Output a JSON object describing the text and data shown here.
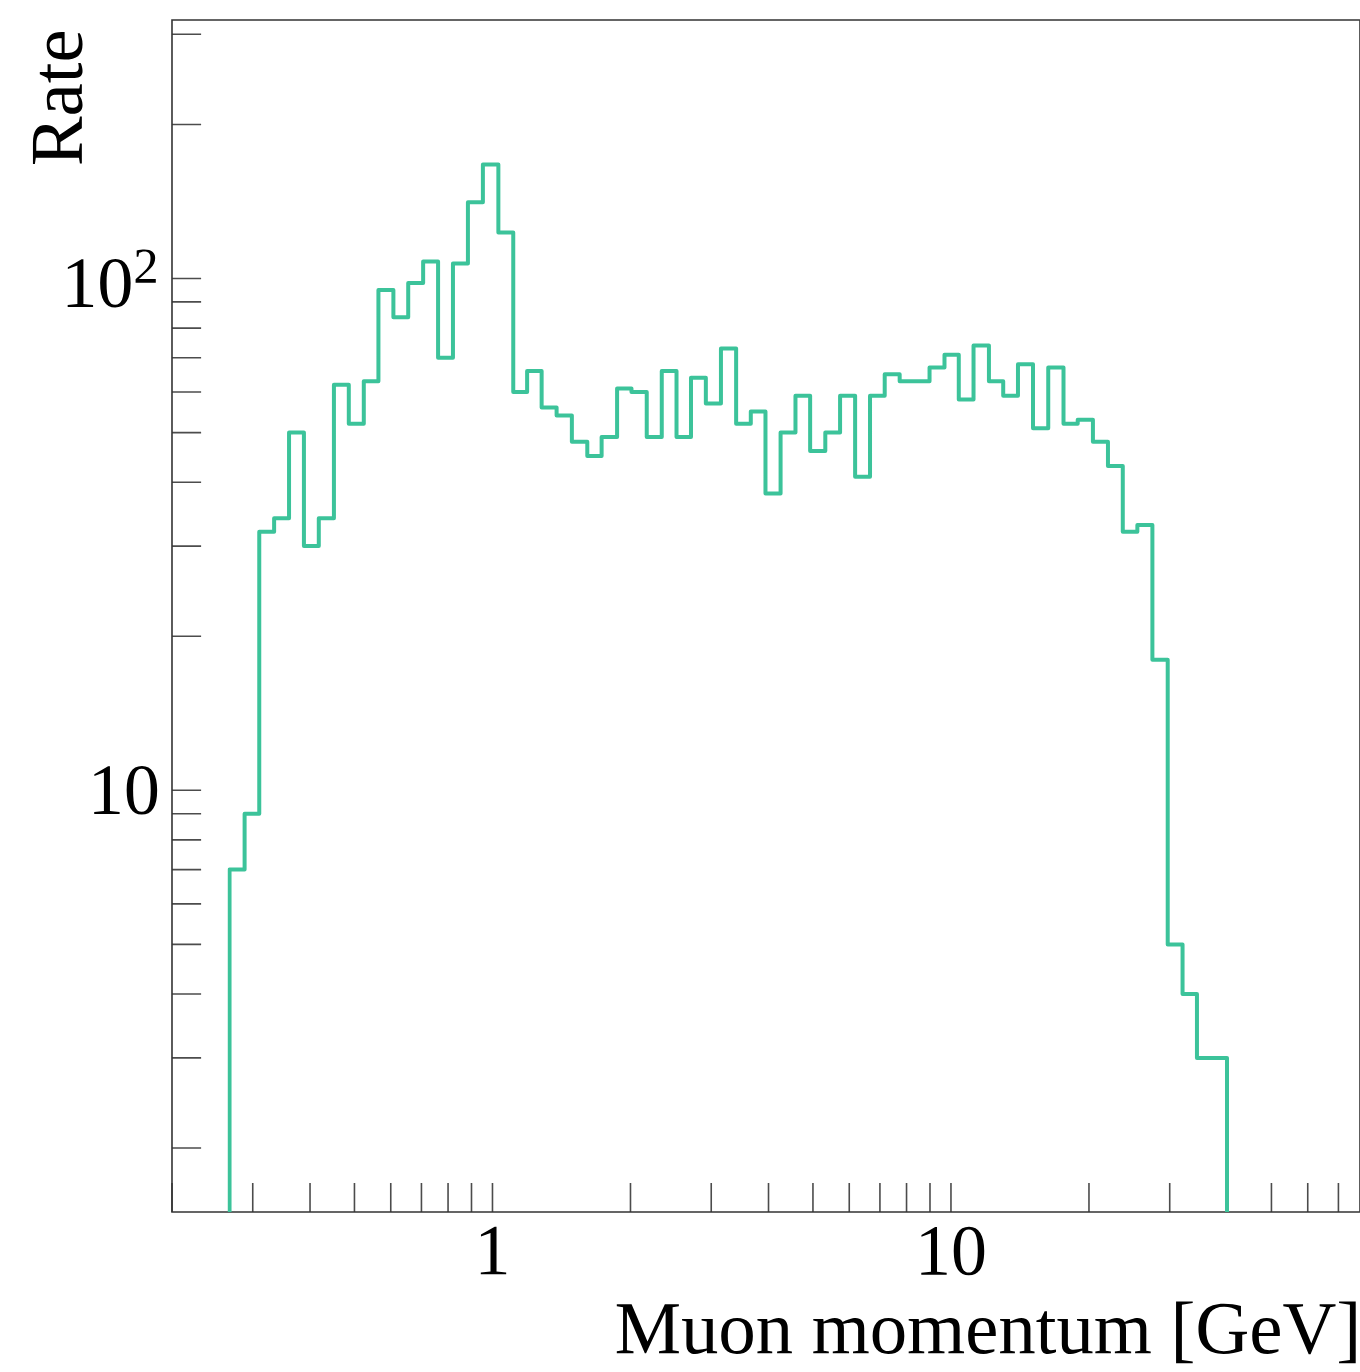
{
  "chart_data": {
    "type": "histogram",
    "xlabel": "Muon momentum [GeV]",
    "ylabel": "Rate",
    "log": "xy",
    "color": "#3cc39a",
    "bins": [
      0.267,
      0.288,
      0.31,
      0.334,
      0.36,
      0.388,
      0.418,
      0.451,
      0.486,
      0.524,
      0.564,
      0.608,
      0.655,
      0.706,
      0.761,
      0.82,
      0.884,
      0.953,
      1.03,
      1.11,
      1.19,
      1.28,
      1.38,
      1.49,
      1.61,
      1.73,
      1.87,
      2.01,
      2.17,
      2.34,
      2.52,
      2.71,
      2.92,
      3.15,
      3.4,
      3.66,
      3.94,
      4.25,
      4.58,
      4.93,
      5.32,
      5.73,
      6.18,
      6.66,
      7.17,
      7.73,
      8.33,
      8.98,
      9.68,
      10.4,
      11.2,
      12.1,
      13.0,
      14.0,
      15.1,
      16.3,
      17.6,
      18.9,
      20.4,
      22.0,
      23.7,
      25.5,
      27.5,
      29.7,
      32.0,
      34.4,
      37.1,
      40.0
    ],
    "values": [
      7.0,
      9.0,
      32,
      34,
      50,
      30,
      34,
      62,
      52,
      63,
      95,
      84,
      98,
      108,
      70,
      107,
      141,
      167,
      123,
      60,
      66,
      56,
      54,
      48,
      45,
      49,
      61,
      60,
      49,
      66,
      49,
      64,
      57,
      73,
      52,
      55,
      38,
      50,
      59,
      46,
      50,
      59,
      41,
      59,
      65,
      63,
      63,
      67,
      71,
      58,
      74,
      63,
      59,
      68,
      51,
      67,
      52,
      53,
      48,
      43,
      32,
      33,
      18,
      5.0,
      4.0,
      3.0,
      3.0
    ],
    "xlim": [
      0.2,
      78
    ],
    "ylim": [
      1.5,
      320
    ],
    "xticks": [
      {
        "value": 0.2,
        "label": null
      },
      {
        "value": 0.3,
        "label": null
      },
      {
        "value": 0.4,
        "label": null
      },
      {
        "value": 0.5,
        "label": null
      },
      {
        "value": 0.6,
        "label": null
      },
      {
        "value": 0.7,
        "label": null
      },
      {
        "value": 0.8,
        "label": null
      },
      {
        "value": 0.9,
        "label": null
      },
      1,
      {
        "value": 2,
        "label": null
      },
      {
        "value": 3,
        "label": null
      },
      {
        "value": 4,
        "label": null
      },
      {
        "value": 5,
        "label": null
      },
      {
        "value": 6,
        "label": null
      },
      {
        "value": 7,
        "label": null
      },
      {
        "value": 8,
        "label": null
      },
      {
        "value": 9,
        "label": null
      },
      10,
      {
        "value": 20,
        "label": null
      },
      {
        "value": 30,
        "label": null
      },
      {
        "value": 40,
        "label": null
      },
      {
        "value": 50,
        "label": null
      },
      {
        "value": 60,
        "label": null
      },
      {
        "value": 70,
        "label": null
      }
    ],
    "yticks": [
      {
        "value": 2,
        "label": null
      },
      {
        "value": 3,
        "label": null
      },
      {
        "value": 4,
        "label": null
      },
      {
        "value": 5,
        "label": null
      },
      {
        "value": 6,
        "label": null
      },
      {
        "value": 7,
        "label": null
      },
      {
        "value": 8,
        "label": null
      },
      {
        "value": 9,
        "label": null
      },
      10,
      {
        "value": 20,
        "label": null
      },
      {
        "value": 30,
        "label": null
      },
      {
        "value": 40,
        "label": null
      },
      {
        "value": 50,
        "label": null
      },
      {
        "value": 60,
        "label": null
      },
      {
        "value": 70,
        "label": null
      },
      {
        "value": 80,
        "label": null
      },
      {
        "value": 90,
        "label": null
      },
      {
        "value": 100,
        "label": "10$^{2}$"
      },
      {
        "value": 200,
        "label": null
      },
      {
        "value": 300,
        "label": null
      }
    ]
  }
}
